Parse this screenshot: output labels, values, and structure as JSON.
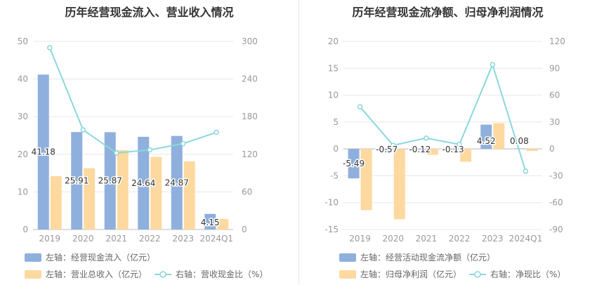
{
  "chart_data": [
    {
      "type": "bar",
      "title": "历年经营现金流入、营业收入情况",
      "categories": [
        "2019",
        "2020",
        "2021",
        "2022",
        "2023",
        "2024Q1"
      ],
      "series": [
        {
          "name": "经营现金流入",
          "axis": "left",
          "kind": "bar",
          "values": [
            41.18,
            25.91,
            25.87,
            24.64,
            24.87,
            4.15
          ],
          "labels": [
            "41.18",
            "25.91",
            "25.87",
            "24.64",
            "24.87",
            "4.15"
          ]
        },
        {
          "name": "营业总收入",
          "axis": "left",
          "kind": "bar",
          "values": [
            14.2,
            16.3,
            21.1,
            19.3,
            18.1,
            2.8
          ]
        },
        {
          "name": "营收现金比",
          "axis": "right",
          "kind": "line",
          "values": [
            290,
            159,
            122,
            127,
            137,
            155
          ]
        }
      ],
      "left_axis": {
        "min": 0,
        "max": 50,
        "ticks": [
          "0",
          "10",
          "20",
          "30",
          "40",
          "50"
        ]
      },
      "right_axis": {
        "min": 0,
        "max": 300,
        "ticks": [
          "0",
          "60",
          "120",
          "180",
          "240",
          "300"
        ]
      },
      "legend": [
        {
          "text": "左轴：经营现金流入（亿元）",
          "kind": "bar",
          "color": "#8fb0dd"
        },
        {
          "text": "左轴：营业总收入（亿元）",
          "kind": "bar",
          "color": "#fdd9a0"
        },
        {
          "text": "右轴：营收现金比（%）",
          "kind": "line",
          "color": "#8ad8dc"
        }
      ]
    },
    {
      "type": "bar",
      "title": "历年经营现金流净额、归母净利润情况",
      "categories": [
        "2019",
        "2020",
        "2021",
        "2022",
        "2023",
        "2024Q1"
      ],
      "series": [
        {
          "name": "经营活动现金流净额",
          "axis": "left",
          "kind": "bar",
          "values": [
            -5.49,
            -0.57,
            -0.12,
            -0.13,
            4.52,
            0.08
          ],
          "labels": [
            "-5.49",
            "-0.57",
            "-0.12",
            "-0.13",
            "4.52",
            "0.08"
          ]
        },
        {
          "name": "归母净利润",
          "axis": "left",
          "kind": "bar",
          "values": [
            -11.4,
            -13.1,
            -1.1,
            -2.4,
            4.8,
            -0.4
          ]
        },
        {
          "name": "净现比",
          "axis": "right",
          "kind": "line",
          "values": [
            47,
            4,
            12,
            5,
            94,
            -25
          ]
        }
      ],
      "left_axis": {
        "min": -15,
        "max": 20,
        "ticks": [
          "-15",
          "-10",
          "-5",
          "0",
          "5",
          "10",
          "15",
          "20"
        ]
      },
      "right_axis": {
        "min": -90,
        "max": 120,
        "ticks": [
          "-90",
          "-60",
          "-30",
          "0",
          "30",
          "60",
          "90",
          "120"
        ]
      },
      "legend": [
        {
          "text": "左轴：经营活动现金流净额（亿元）",
          "kind": "bar",
          "color": "#8fb0dd"
        },
        {
          "text": "左轴：归母净利润（亿元）",
          "kind": "bar",
          "color": "#fdd9a0"
        },
        {
          "text": "右轴：净现比（%）",
          "kind": "line",
          "color": "#8ad8dc"
        }
      ]
    }
  ]
}
